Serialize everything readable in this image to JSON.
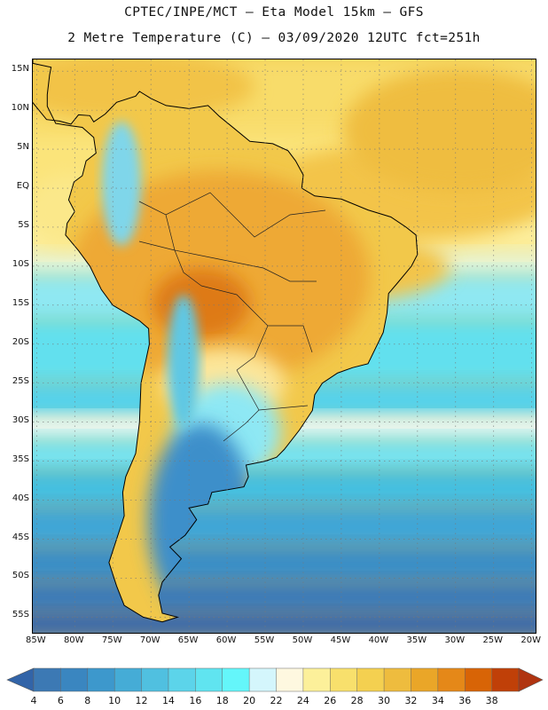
{
  "header": {
    "title_line1": "CPTEC/INPE/MCT –  Eta Model 15km – GFS",
    "title_line2": "2 Metre Temperature (C) – 03/09/2020 12UTC fct=251h"
  },
  "map": {
    "latitude_labels": [
      "15N",
      "10N",
      "5N",
      "EQ",
      "5S",
      "10S",
      "15S",
      "20S",
      "25S",
      "30S",
      "35S",
      "40S",
      "45S",
      "50S",
      "55S"
    ],
    "longitude_labels": [
      "85W",
      "80W",
      "75W",
      "70W",
      "65W",
      "60W",
      "55W",
      "50W",
      "45W",
      "40W",
      "35W",
      "30W",
      "25W",
      "20W"
    ],
    "lat_range": [
      16.5,
      -57
    ],
    "lon_range": [
      -85.5,
      -19.5
    ],
    "gridlines": "dotted"
  },
  "colorbar": {
    "levels": [
      4,
      6,
      8,
      10,
      12,
      14,
      16,
      18,
      20,
      22,
      24,
      26,
      28,
      30,
      32,
      34,
      36,
      38
    ],
    "colors": [
      "#3c79b4",
      "#3a86c0",
      "#3d98cc",
      "#45acd6",
      "#50c0e0",
      "#5cd4ea",
      "#60e4f0",
      "#64f6fa",
      "#d4f6fc",
      "#fef8e0",
      "#fcf09a",
      "#f8e06c",
      "#f4d050",
      "#eebc3e",
      "#eaa628",
      "#e58818",
      "#d86406",
      "#c04008"
    ],
    "left_arrow_color": "#3264a8",
    "right_arrow_color": "#b03410"
  }
}
